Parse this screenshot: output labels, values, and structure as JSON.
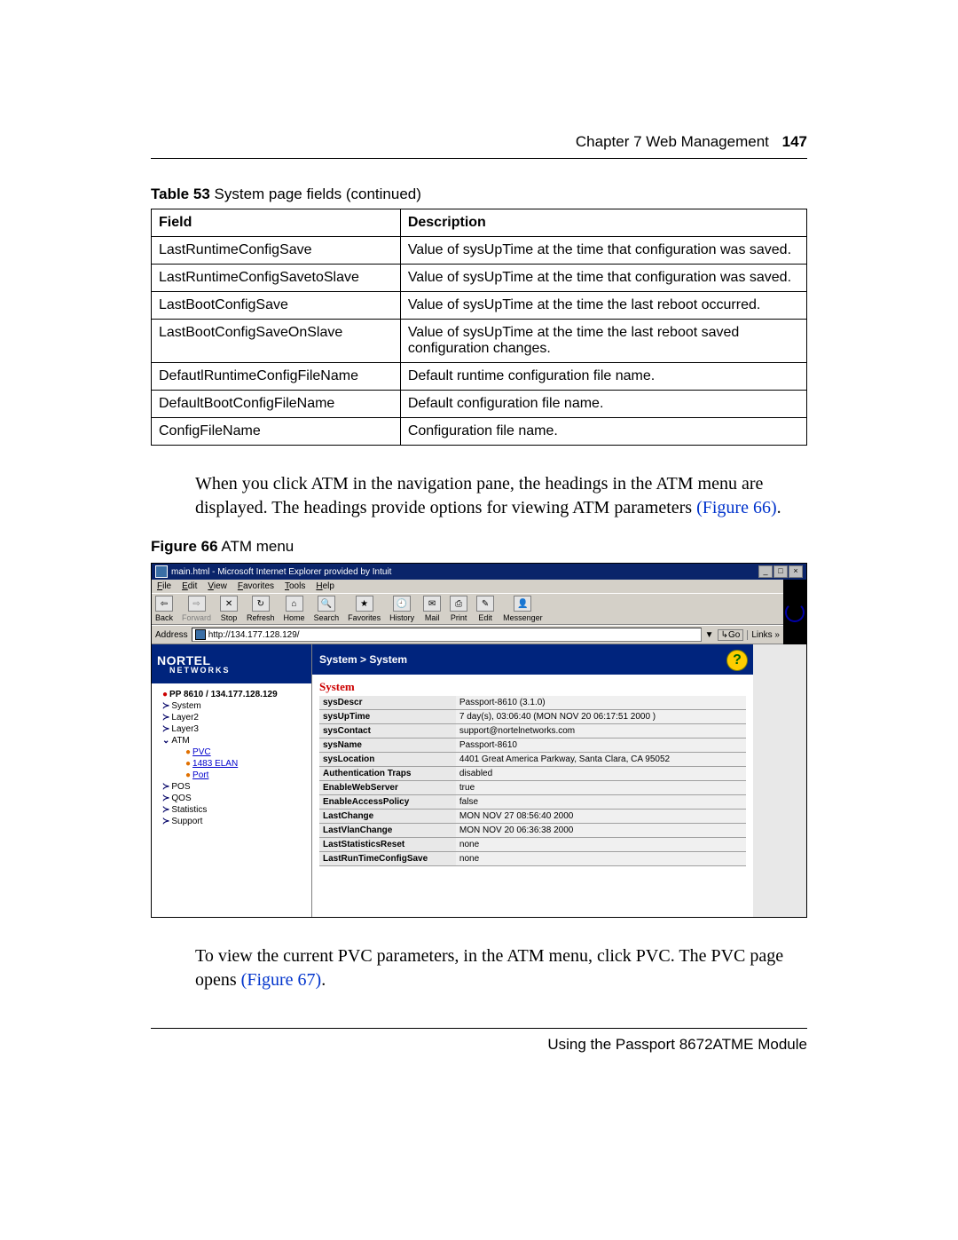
{
  "header": {
    "chapter": "Chapter 7  Web Management",
    "page_num": "147"
  },
  "table53": {
    "caption_bold": "Table 53",
    "caption_rest": "   System page fields (continued)",
    "columns": [
      "Field",
      "Description"
    ],
    "rows": [
      [
        "LastRuntimeConfigSave",
        "Value of sysUpTime at the time that configuration was saved."
      ],
      [
        "LastRuntimeConfigSavetoSlave",
        "Value of sysUpTime at the time that configuration was saved."
      ],
      [
        "LastBootConfigSave",
        "Value of sysUpTime at the time the last reboot occurred."
      ],
      [
        "LastBootConfigSaveOnSlave",
        "Value of sysUpTime at the time the last reboot saved configuration changes."
      ],
      [
        "DefautlRuntimeConfigFileName",
        "Default runtime configuration file name."
      ],
      [
        "DefaultBootConfigFileName",
        "Default configuration file name."
      ],
      [
        "ConfigFileName",
        "Configuration file name."
      ]
    ]
  },
  "para1_a": "When you click ATM in the navigation pane, the headings in the ATM menu are displayed. The headings provide options for viewing ATM parameters ",
  "para1_link": "(Figure 66)",
  "para1_b": ".",
  "fig66": {
    "caption_bold": "Figure 66",
    "caption_rest": "   ATM menu"
  },
  "ie": {
    "title": "main.html - Microsoft Internet Explorer provided by Intuit",
    "menus": [
      "File",
      "Edit",
      "View",
      "Favorites",
      "Tools",
      "Help"
    ],
    "toolbar": [
      {
        "label": "Back",
        "glyph": "⇦",
        "disabled": false
      },
      {
        "label": "Forward",
        "glyph": "⇨",
        "disabled": true
      },
      {
        "label": "Stop",
        "glyph": "✕",
        "disabled": false
      },
      {
        "label": "Refresh",
        "glyph": "↻",
        "disabled": false
      },
      {
        "label": "Home",
        "glyph": "⌂",
        "disabled": false
      },
      {
        "label": "Search",
        "glyph": "🔍",
        "disabled": false
      },
      {
        "label": "Favorites",
        "glyph": "★",
        "disabled": false
      },
      {
        "label": "History",
        "glyph": "🕘",
        "disabled": false
      },
      {
        "label": "Mail",
        "glyph": "✉",
        "disabled": false
      },
      {
        "label": "Print",
        "glyph": "⎙",
        "disabled": false
      },
      {
        "label": "Edit",
        "glyph": "✎",
        "disabled": false
      },
      {
        "label": "Messenger",
        "glyph": "👤",
        "disabled": false
      }
    ],
    "address_label": "Address",
    "address_value": "http://134.177.128.129/",
    "go_label": "Go",
    "links_label": "Links »"
  },
  "brand": {
    "main": "NORTEL",
    "sub": "NETWORKS"
  },
  "nav": {
    "root": "PP 8610 / 134.177.128.129",
    "items": [
      {
        "type": "chev",
        "label": "System"
      },
      {
        "type": "chev",
        "label": "Layer2"
      },
      {
        "type": "chev",
        "label": "Layer3"
      },
      {
        "type": "down",
        "label": "ATM"
      },
      {
        "type": "sub",
        "label": "PVC",
        "link": true
      },
      {
        "type": "sub",
        "label": "1483 ELAN",
        "link": true
      },
      {
        "type": "sub",
        "label": "Port",
        "link": true
      },
      {
        "type": "chev",
        "label": "POS"
      },
      {
        "type": "chev",
        "label": "QOS"
      },
      {
        "type": "chev",
        "label": "Statistics"
      },
      {
        "type": "chev",
        "label": "Support"
      }
    ]
  },
  "content": {
    "breadcrumb": "System > System",
    "subtitle": "System",
    "rows": [
      [
        "sysDescr",
        "Passport-8610 (3.1.0)"
      ],
      [
        "sysUpTime",
        "7 day(s), 03:06:40 (MON NOV 20 06:17:51 2000 )"
      ],
      [
        "sysContact",
        "support@nortelnetworks.com"
      ],
      [
        "sysName",
        "Passport-8610"
      ],
      [
        "sysLocation",
        "4401 Great America Parkway, Santa Clara, CA 95052"
      ],
      [
        "Authentication Traps",
        "disabled"
      ],
      [
        "EnableWebServer",
        "true"
      ],
      [
        "EnableAccessPolicy",
        "false"
      ],
      [
        "LastChange",
        "MON NOV 27 08:56:40 2000"
      ],
      [
        "LastVlanChange",
        "MON NOV 20 06:36:38 2000"
      ],
      [
        "LastStatisticsReset",
        "none"
      ],
      [
        "LastRunTimeConfigSave",
        "none"
      ]
    ]
  },
  "para2_a": "To view the current PVC parameters, in the ATM menu, click PVC. The PVC page opens ",
  "para2_link": "(Figure 67)",
  "para2_b": ".",
  "footer": "Using the Passport 8672ATME Module"
}
